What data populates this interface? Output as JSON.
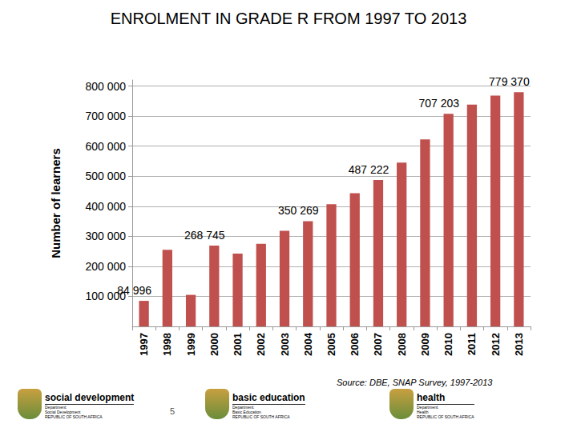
{
  "chart_data": {
    "type": "bar",
    "title": "ENROLMENT IN GRADE R FROM 1997 TO 2013",
    "y_label": "Number of learners",
    "categories": [
      "1997",
      "1998",
      "1999",
      "2000",
      "2001",
      "2002",
      "2003",
      "2004",
      "2005",
      "2006",
      "2007",
      "2008",
      "2009",
      "2010",
      "2011",
      "2012",
      "2013"
    ],
    "values": [
      84996,
      255000,
      105000,
      268745,
      242000,
      275000,
      318000,
      350269,
      407000,
      443000,
      487222,
      545000,
      622000,
      707203,
      738000,
      768000,
      779370
    ],
    "value_labels": [
      "84 996",
      null,
      null,
      "268 745",
      null,
      null,
      null,
      "350 269",
      null,
      null,
      "487 222",
      null,
      null,
      "707 203",
      null,
      null,
      "779 370"
    ],
    "data_labels": true,
    "color": "#c0504d",
    "ylim": [
      0,
      820000
    ],
    "yticks": [
      {
        "value": 100000,
        "label": "100 000"
      },
      {
        "value": 200000,
        "label": "200 000"
      },
      {
        "value": 300000,
        "label": "300 000"
      },
      {
        "value": 400000,
        "label": "400 000"
      },
      {
        "value": 500000,
        "label": "500 000"
      },
      {
        "value": 600000,
        "label": "600 000"
      },
      {
        "value": 700000,
        "label": "700 000"
      },
      {
        "value": 800000,
        "label": "800 000"
      }
    ],
    "grid": true
  },
  "source": "Source: DBE, SNAP Survey, 1997-2013",
  "page_number": "5",
  "logos": [
    {
      "name": "social development",
      "lines": [
        "Department:",
        "Social Development",
        "REPUBLIC OF SOUTH AFRICA"
      ]
    },
    {
      "name": "basic education",
      "lines": [
        "Department:",
        "Basic Education",
        "REPUBLIC OF SOUTH AFRICA"
      ]
    },
    {
      "name": "health",
      "lines": [
        "Department:",
        "Health",
        "REPUBLIC OF SOUTH AFRICA"
      ]
    }
  ]
}
